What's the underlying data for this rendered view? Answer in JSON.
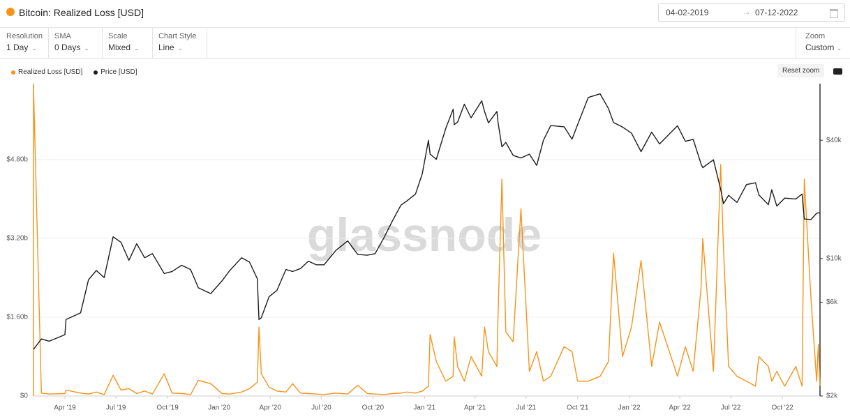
{
  "header": {
    "title": "Bitcoin: Realized Loss [USD]",
    "date_from": "04-02-2019",
    "date_to": "07-12-2022"
  },
  "controls": [
    {
      "label": "Resolution",
      "value": "1 Day"
    },
    {
      "label": "SMA",
      "value": "0 Days"
    },
    {
      "label": "Scale",
      "value": "Mixed"
    },
    {
      "label": "Chart Style",
      "value": "Line"
    }
  ],
  "zoom": {
    "label": "Zoom",
    "value": "Custom"
  },
  "reset_zoom": "Reset zoom",
  "watermark": "glassnode",
  "chart_data": {
    "type": "line",
    "legend": "top-left",
    "grid": true,
    "x": [
      "2019-02-04",
      "2019-02-18",
      "2019-03-04",
      "2019-04-01",
      "2019-04-03",
      "2019-04-29",
      "2019-05-13",
      "2019-05-27",
      "2019-06-10",
      "2019-06-26",
      "2019-07-10",
      "2019-07-24",
      "2019-08-07",
      "2019-08-21",
      "2019-09-04",
      "2019-09-25",
      "2019-10-09",
      "2019-10-26",
      "2019-11-11",
      "2019-11-25",
      "2019-12-17",
      "2020-01-06",
      "2020-01-20",
      "2020-02-10",
      "2020-02-24",
      "2020-03-09",
      "2020-03-12",
      "2020-03-16",
      "2020-03-30",
      "2020-04-13",
      "2020-04-29",
      "2020-05-11",
      "2020-05-25",
      "2020-06-08",
      "2020-06-22",
      "2020-07-06",
      "2020-07-27",
      "2020-08-17",
      "2020-09-04",
      "2020-09-21",
      "2020-10-05",
      "2020-10-21",
      "2020-11-05",
      "2020-11-20",
      "2020-12-01",
      "2020-12-16",
      "2020-12-28",
      "2021-01-08",
      "2021-01-11",
      "2021-01-22",
      "2021-02-08",
      "2021-02-21",
      "2021-02-23",
      "2021-03-01",
      "2021-03-13",
      "2021-03-25",
      "2021-04-13",
      "2021-04-18",
      "2021-04-25",
      "2021-05-10",
      "2021-05-12",
      "2021-05-19",
      "2021-05-26",
      "2021-06-08",
      "2021-06-22",
      "2021-07-07",
      "2021-07-20",
      "2021-08-01",
      "2021-08-14",
      "2021-09-07",
      "2021-09-21",
      "2021-10-01",
      "2021-10-20",
      "2021-11-10",
      "2021-11-25",
      "2021-12-04",
      "2021-12-20",
      "2022-01-05",
      "2022-01-22",
      "2022-02-10",
      "2022-02-24",
      "2022-03-28",
      "2022-04-11",
      "2022-04-25",
      "2022-05-09",
      "2022-05-12",
      "2022-05-31",
      "2022-06-13",
      "2022-06-18",
      "2022-06-27",
      "2022-07-12",
      "2022-07-29",
      "2022-08-14",
      "2022-08-20",
      "2022-09-06",
      "2022-09-12",
      "2022-09-21",
      "2022-10-05",
      "2022-10-25",
      "2022-11-05",
      "2022-11-09",
      "2022-11-21",
      "2022-12-01",
      "2022-12-04",
      "2022-12-07"
    ],
    "series": [
      {
        "name": "Realized Loss [USD]",
        "color": "#f7931a",
        "axis": "y",
        "values": [
          6300000000,
          60000000,
          40000000,
          50000000,
          120000000,
          60000000,
          40000000,
          80000000,
          30000000,
          420000000,
          120000000,
          150000000,
          50000000,
          100000000,
          40000000,
          450000000,
          60000000,
          50000000,
          30000000,
          320000000,
          250000000,
          50000000,
          40000000,
          80000000,
          150000000,
          280000000,
          1400000000,
          450000000,
          180000000,
          100000000,
          80000000,
          250000000,
          60000000,
          50000000,
          40000000,
          30000000,
          60000000,
          40000000,
          220000000,
          50000000,
          40000000,
          30000000,
          50000000,
          60000000,
          80000000,
          60000000,
          100000000,
          200000000,
          1250000000,
          700000000,
          300000000,
          400000000,
          1200000000,
          600000000,
          300000000,
          800000000,
          400000000,
          1400000000,
          900000000,
          600000000,
          1600000000,
          4400000000,
          1300000000,
          1100000000,
          3800000000,
          500000000,
          900000000,
          300000000,
          400000000,
          1000000000,
          900000000,
          300000000,
          300000000,
          400000000,
          700000000,
          2900000000,
          800000000,
          1400000000,
          2750000000,
          600000000,
          1500000000,
          400000000,
          1000000000,
          500000000,
          2200000000,
          3200000000,
          500000000,
          4700000000,
          3000000000,
          600000000,
          400000000,
          300000000,
          200000000,
          800000000,
          600000000,
          300000000,
          500000000,
          200000000,
          600000000,
          200000000,
          4400000000,
          1970000000,
          300000000,
          1050000000,
          200000000
        ]
      },
      {
        "name": "Price [USD]",
        "color": "#1c1c1c",
        "axis": "y2",
        "values": [
          3450,
          3900,
          3800,
          4100,
          4900,
          5300,
          7800,
          8700,
          8000,
          12900,
          12100,
          9800,
          11900,
          10100,
          10600,
          8400,
          8600,
          9250,
          8800,
          7100,
          6640,
          7700,
          8700,
          10100,
          9600,
          7900,
          4900,
          5000,
          6400,
          6900,
          8800,
          8600,
          8900,
          9700,
          9300,
          9300,
          11000,
          12300,
          10500,
          10400,
          10600,
          12800,
          15600,
          18700,
          19700,
          21300,
          27000,
          40000,
          34000,
          32000,
          46000,
          57500,
          48000,
          49500,
          61000,
          52000,
          63500,
          56000,
          49000,
          56000,
          49500,
          37000,
          39000,
          33500,
          32500,
          34000,
          29800,
          40000,
          47500,
          46800,
          40500,
          48000,
          66000,
          68900,
          58000,
          49200,
          46700,
          43500,
          35000,
          44000,
          38300,
          47400,
          39500,
          40400,
          30300,
          29000,
          31800,
          22500,
          19000,
          21000,
          19300,
          23800,
          24300,
          21100,
          18800,
          22400,
          18500,
          20300,
          20100,
          21300,
          15900,
          15800,
          17000,
          17100,
          17000
        ]
      }
    ],
    "xlim": [
      "2019-02-04",
      "2022-12-07"
    ],
    "xticks": [
      {
        "value": "2019-04-01",
        "label": "Apr '19"
      },
      {
        "value": "2019-07-01",
        "label": "Jul '19"
      },
      {
        "value": "2019-10-01",
        "label": "Oct '19"
      },
      {
        "value": "2020-01-01",
        "label": "Jan '20"
      },
      {
        "value": "2020-04-01",
        "label": "Apr '20"
      },
      {
        "value": "2020-07-01",
        "label": "Jul '20"
      },
      {
        "value": "2020-10-01",
        "label": "Oct '20"
      },
      {
        "value": "2021-01-01",
        "label": "Jan '21"
      },
      {
        "value": "2021-04-01",
        "label": "Apr '21"
      },
      {
        "value": "2021-07-01",
        "label": "Jul '21"
      },
      {
        "value": "2021-10-01",
        "label": "Oct '21"
      },
      {
        "value": "2022-01-01",
        "label": "Jan '22"
      },
      {
        "value": "2022-04-01",
        "label": "Apr '22"
      },
      {
        "value": "2022-07-01",
        "label": "Jul '22"
      },
      {
        "value": "2022-10-01",
        "label": "Oct '22"
      }
    ],
    "ylim": [
      0,
      6340000000
    ],
    "yticks": [
      {
        "value": 0,
        "label": "$0"
      },
      {
        "value": 1600000000,
        "label": "$1.60b"
      },
      {
        "value": 3200000000,
        "label": "$3.20b"
      },
      {
        "value": 4800000000,
        "label": "$4.80b"
      }
    ],
    "y2lim": [
      2000,
      77600
    ],
    "y2scale": "log",
    "y2ticks": [
      {
        "value": 2000,
        "label": "$2k"
      },
      {
        "value": 6000,
        "label": "$6k"
      },
      {
        "value": 10000,
        "label": "$10k"
      },
      {
        "value": 40000,
        "label": "$40k"
      }
    ]
  }
}
